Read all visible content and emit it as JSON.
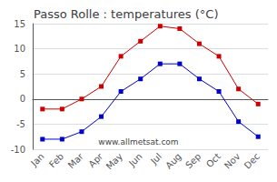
{
  "chart_data": {
    "type": "line",
    "title": "Passo Rolle : temperatures (°C)",
    "categories": [
      "Jan",
      "Feb",
      "Mar",
      "Apr",
      "May",
      "Jun",
      "Jul",
      "Aug",
      "Sep",
      "Oct",
      "Nov",
      "Dec"
    ],
    "series": [
      {
        "color": "#cc0000",
        "marker": "square",
        "line_style": "solid",
        "values": [
          -2,
          -2,
          0,
          2.5,
          8.5,
          11.5,
          14.5,
          14,
          11,
          8.5,
          2,
          -1
        ]
      },
      {
        "color": "#0000cc",
        "marker": "square",
        "line_style": "solid",
        "values": [
          -8,
          -8,
          -6.5,
          -3.5,
          1.5,
          4,
          7,
          7,
          4,
          1.5,
          -4.5,
          -7.5
        ]
      }
    ],
    "ylim": [
      -10,
      15
    ],
    "yticks": [
      -10,
      -5,
      0,
      5,
      10,
      15
    ],
    "grid": true,
    "annotations": [
      "www.allmetsat.com"
    ]
  }
}
